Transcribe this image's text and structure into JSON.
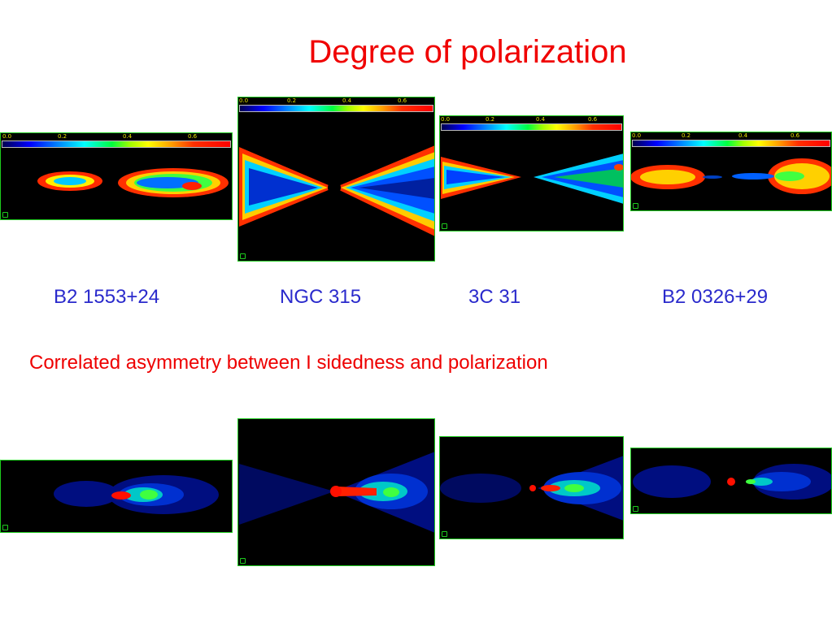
{
  "slide": {
    "title": "Degree of polarization",
    "caption": "Correlated asymmetry between I sidedness and polarization"
  },
  "colorbar_ticks": [
    "0.0",
    "0.2",
    "0.4",
    "0.6"
  ],
  "sources": [
    {
      "name": "B2 1553+24"
    },
    {
      "name": "NGC 315"
    },
    {
      "name": "3C 31"
    },
    {
      "name": "B2 0326+29"
    }
  ],
  "colors": {
    "title": "#f00000",
    "caption": "#ee0000",
    "source_labels": "#2a2acc",
    "panel_border": "#1ecc1e"
  }
}
